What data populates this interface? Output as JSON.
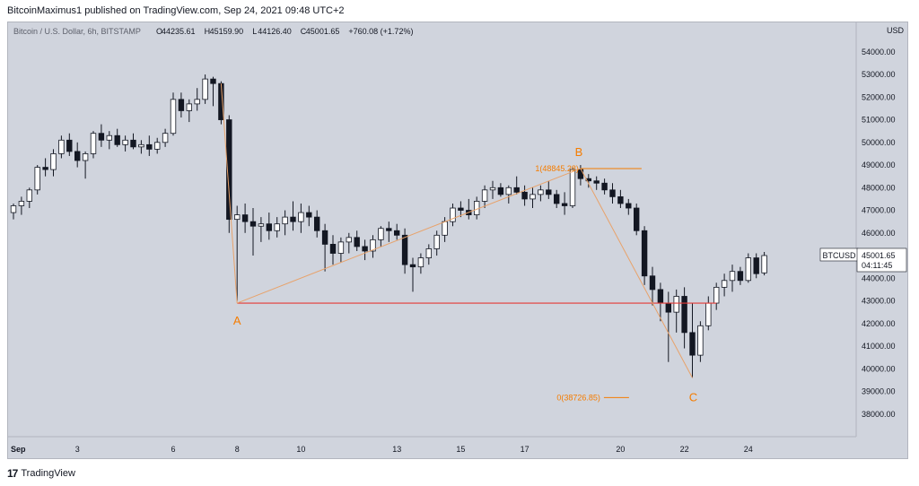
{
  "header": {
    "publisher_line": "BitcoinMaximus1 published on TradingView.com, Sep 24, 2021 09:48 UTC+2"
  },
  "footer": {
    "brand": "TradingView",
    "logo_text": "17"
  },
  "chart_data": {
    "type": "candlestick",
    "symbol": "Bitcoin / U.S. Dollar, 6h, BITSTAMP",
    "ohlc_readout": {
      "open": "44235.61",
      "high": "45159.90",
      "low": "44126.40",
      "close": "45001.65",
      "change": "+760.08 (+1.72%)"
    },
    "currency": "USD",
    "ylim": [
      37000,
      55300
    ],
    "y_ticks": [
      "38000.00",
      "39000.00",
      "40000.00",
      "41000.00",
      "42000.00",
      "43000.00",
      "44000.00",
      "45000.00",
      "46000.00",
      "47000.00",
      "48000.00",
      "49000.00",
      "50000.00",
      "51000.00",
      "52000.00",
      "53000.00",
      "54000.00"
    ],
    "x_labels": [
      {
        "label": "Sep",
        "idx": 0
      },
      {
        "label": "3",
        "idx": 8
      },
      {
        "label": "6",
        "idx": 20
      },
      {
        "label": "8",
        "idx": 28
      },
      {
        "label": "10",
        "idx": 36
      },
      {
        "label": "13",
        "idx": 48
      },
      {
        "label": "15",
        "idx": 56
      },
      {
        "label": "17",
        "idx": 64
      },
      {
        "label": "20",
        "idx": 76
      },
      {
        "label": "22",
        "idx": 84
      },
      {
        "label": "24",
        "idx": 92
      }
    ],
    "last_price": {
      "symbol": "BTCUSD",
      "value": "45001.65",
      "countdown": "04:11:45"
    },
    "candles": [
      [
        46900,
        47300,
        46600,
        47200
      ],
      [
        47200,
        47600,
        46800,
        47400
      ],
      [
        47400,
        48000,
        47100,
        47900
      ],
      [
        47900,
        49000,
        47700,
        48900
      ],
      [
        48900,
        49300,
        48500,
        48800
      ],
      [
        48800,
        49700,
        48500,
        49500
      ],
      [
        49500,
        50300,
        49300,
        50100
      ],
      [
        50100,
        50400,
        49400,
        49600
      ],
      [
        49600,
        50000,
        48900,
        49200
      ],
      [
        49200,
        49600,
        48400,
        49500
      ],
      [
        49500,
        50500,
        49300,
        50400
      ],
      [
        50400,
        50800,
        49800,
        50100
      ],
      [
        50100,
        50500,
        49700,
        50300
      ],
      [
        50300,
        50600,
        49800,
        49900
      ],
      [
        49900,
        50300,
        49600,
        50100
      ],
      [
        50100,
        50400,
        49700,
        49800
      ],
      [
        49800,
        50100,
        49500,
        49900
      ],
      [
        49900,
        50300,
        49400,
        49700
      ],
      [
        49700,
        50200,
        49500,
        50000
      ],
      [
        50000,
        50600,
        49800,
        50400
      ],
      [
        50400,
        52200,
        50300,
        51900
      ],
      [
        51900,
        52200,
        51100,
        51400
      ],
      [
        51400,
        51900,
        50900,
        51700
      ],
      [
        51700,
        52400,
        51400,
        51900
      ],
      [
        51900,
        53000,
        51700,
        52800
      ],
      [
        52800,
        52900,
        51600,
        52600
      ],
      [
        52600,
        52700,
        50800,
        51000
      ],
      [
        51000,
        51200,
        46000,
        46600
      ],
      [
        46600,
        47200,
        43000,
        46800
      ],
      [
        46800,
        47300,
        46000,
        46500
      ],
      [
        46500,
        47100,
        45000,
        46300
      ],
      [
        46300,
        46700,
        45600,
        46400
      ],
      [
        46400,
        46900,
        45700,
        46100
      ],
      [
        46100,
        46700,
        45800,
        46400
      ],
      [
        46400,
        47000,
        45900,
        46700
      ],
      [
        46700,
        47400,
        46100,
        46500
      ],
      [
        46500,
        47300,
        46000,
        46900
      ],
      [
        46900,
        47200,
        46300,
        46700
      ],
      [
        46700,
        47000,
        45800,
        46100
      ],
      [
        46100,
        46400,
        44300,
        45500
      ],
      [
        45500,
        45900,
        44600,
        45100
      ],
      [
        45100,
        45800,
        44700,
        45600
      ],
      [
        45600,
        46000,
        45100,
        45800
      ],
      [
        45800,
        46100,
        45200,
        45400
      ],
      [
        45400,
        45700,
        44800,
        45200
      ],
      [
        45200,
        45900,
        44900,
        45700
      ],
      [
        45700,
        46300,
        45400,
        46200
      ],
      [
        46200,
        46500,
        45600,
        46100
      ],
      [
        46100,
        46400,
        45700,
        45900
      ],
      [
        45900,
        46200,
        44200,
        44600
      ],
      [
        44600,
        44900,
        43400,
        44500
      ],
      [
        44500,
        45100,
        44200,
        44900
      ],
      [
        44900,
        45500,
        44600,
        45300
      ],
      [
        45300,
        46100,
        45000,
        45900
      ],
      [
        45900,
        46700,
        45600,
        46500
      ],
      [
        46500,
        47300,
        46300,
        47100
      ],
      [
        47100,
        47400,
        46700,
        47000
      ],
      [
        47000,
        47500,
        46600,
        46800
      ],
      [
        46800,
        47600,
        46600,
        47400
      ],
      [
        47400,
        48100,
        47100,
        47900
      ],
      [
        47900,
        48300,
        47500,
        48000
      ],
      [
        48000,
        48200,
        47600,
        47700
      ],
      [
        47700,
        48100,
        47300,
        48000
      ],
      [
        48000,
        48500,
        47700,
        47800
      ],
      [
        47800,
        48100,
        47200,
        47500
      ],
      [
        47500,
        48000,
        47100,
        47700
      ],
      [
        47700,
        48100,
        47400,
        47900
      ],
      [
        47900,
        48300,
        47500,
        47700
      ],
      [
        47700,
        47900,
        47100,
        47300
      ],
      [
        47300,
        47800,
        46800,
        47200
      ],
      [
        47200,
        48900,
        47100,
        48800
      ],
      [
        48800,
        49000,
        48100,
        48400
      ],
      [
        48400,
        48600,
        48000,
        48300
      ],
      [
        48300,
        48500,
        47900,
        48200
      ],
      [
        48200,
        48400,
        47700,
        47900
      ],
      [
        47900,
        48200,
        47300,
        47600
      ],
      [
        47600,
        47900,
        47100,
        47300
      ],
      [
        47300,
        47500,
        46800,
        47100
      ],
      [
        47100,
        47300,
        45900,
        46100
      ],
      [
        46100,
        46300,
        43700,
        44100
      ],
      [
        44100,
        44500,
        42800,
        43500
      ],
      [
        43500,
        43800,
        42100,
        42900
      ],
      [
        42900,
        43400,
        40300,
        42500
      ],
      [
        42500,
        43500,
        41600,
        43200
      ],
      [
        43200,
        43600,
        40900,
        41600
      ],
      [
        41600,
        42900,
        39600,
        40600
      ],
      [
        40600,
        42100,
        40300,
        41900
      ],
      [
        41900,
        43200,
        41700,
        42900
      ],
      [
        42900,
        43800,
        42600,
        43600
      ],
      [
        43600,
        44200,
        43200,
        43900
      ],
      [
        43900,
        44600,
        43400,
        44300
      ],
      [
        44300,
        44500,
        43700,
        43900
      ],
      [
        43900,
        45100,
        43800,
        44900
      ],
      [
        44900,
        45100,
        44000,
        44200
      ],
      [
        44235.61,
        45159.9,
        44126.4,
        45001.65
      ]
    ],
    "annotations": {
      "A": {
        "label": "A",
        "idx": 28,
        "price": 42900
      },
      "B": {
        "label": "B",
        "idx": 71,
        "price": 48845.28
      },
      "C": {
        "label": "C",
        "idx": 85,
        "price": 39600
      },
      "fib_top": {
        "label": "1(48845.28)",
        "price": 48845.28
      },
      "fib_bottom": {
        "label": "0(38726.85)",
        "price": 38726.85
      },
      "support_level": 42900
    },
    "colors": {
      "background": "#d0d4dd",
      "up_body": "#ffffff",
      "down_body": "#131722",
      "wick": "#131722",
      "support_line": "#e53935",
      "annotation": "#f57c00",
      "abc_line": "#e8a26a"
    }
  }
}
